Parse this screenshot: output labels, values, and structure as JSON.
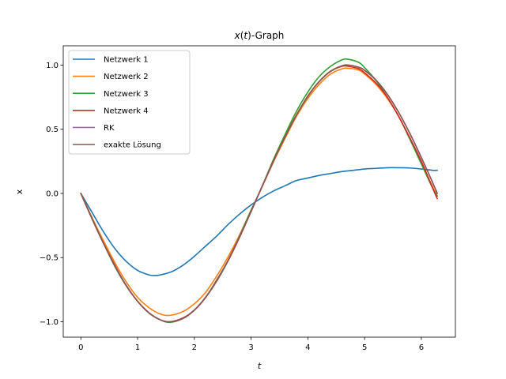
{
  "chart_data": {
    "type": "line",
    "title_parts": {
      "var": "x",
      "open": "(",
      "t": "t",
      "close": ")",
      "suffix": "-Graph"
    },
    "xlabel": "t",
    "ylabel": "x",
    "xlim": [
      -0.31,
      6.6
    ],
    "ylim": [
      -1.12,
      1.15
    ],
    "xticks": [
      0,
      1,
      2,
      3,
      4,
      5,
      6
    ],
    "yticks": [
      -1.0,
      -0.5,
      0.0,
      0.5,
      1.0
    ],
    "xtick_labels": [
      "0",
      "1",
      "2",
      "3",
      "4",
      "5",
      "6"
    ],
    "ytick_labels": [
      "−1.0",
      "−0.5",
      "0.0",
      "0.5",
      "1.0"
    ],
    "legend_position": "upper-left",
    "series": [
      {
        "name": "Netzwerk 1",
        "color": "#1f77b4",
        "x": [
          0,
          0.2,
          0.4,
          0.6,
          0.8,
          1.0,
          1.2,
          1.3,
          1.4,
          1.6,
          1.8,
          2.0,
          2.2,
          2.4,
          2.6,
          2.8,
          3.0,
          3.2,
          3.4,
          3.6,
          3.8,
          4.0,
          4.2,
          4.4,
          4.6,
          4.8,
          5.0,
          5.2,
          5.4,
          5.6,
          5.8,
          6.0,
          6.2,
          6.28
        ],
        "y": [
          0,
          -0.15,
          -0.3,
          -0.43,
          -0.53,
          -0.6,
          -0.635,
          -0.64,
          -0.635,
          -0.61,
          -0.56,
          -0.49,
          -0.41,
          -0.33,
          -0.24,
          -0.16,
          -0.09,
          -0.03,
          0.02,
          0.06,
          0.1,
          0.12,
          0.14,
          0.155,
          0.17,
          0.18,
          0.19,
          0.195,
          0.2,
          0.2,
          0.198,
          0.19,
          0.18,
          0.18
        ]
      },
      {
        "name": "Netzwerk 2",
        "color": "#ff7f0e",
        "x": [
          0,
          0.2,
          0.4,
          0.6,
          0.8,
          1.0,
          1.2,
          1.4,
          1.57,
          1.8,
          2.0,
          2.2,
          2.4,
          2.6,
          2.8,
          3.0,
          3.14,
          3.4,
          3.6,
          3.8,
          4.0,
          4.2,
          4.4,
          4.6,
          4.71,
          4.9,
          5.0,
          5.2,
          5.4,
          5.6,
          5.8,
          6.0,
          6.2,
          6.28
        ],
        "y": [
          0,
          -0.19,
          -0.37,
          -0.54,
          -0.69,
          -0.81,
          -0.89,
          -0.94,
          -0.95,
          -0.92,
          -0.86,
          -0.77,
          -0.64,
          -0.49,
          -0.32,
          -0.13,
          0.0,
          0.25,
          0.43,
          0.6,
          0.74,
          0.85,
          0.93,
          0.97,
          0.975,
          0.96,
          0.93,
          0.85,
          0.74,
          0.6,
          0.43,
          0.24,
          0.05,
          -0.02
        ]
      },
      {
        "name": "Netzwerk 3",
        "color": "#2ca02c",
        "x": [
          0,
          0.2,
          0.4,
          0.6,
          0.8,
          1.0,
          1.2,
          1.4,
          1.57,
          1.8,
          2.0,
          2.2,
          2.4,
          2.6,
          2.8,
          3.0,
          3.14,
          3.4,
          3.6,
          3.8,
          4.0,
          4.2,
          4.4,
          4.6,
          4.71,
          4.9,
          5.0,
          5.2,
          5.4,
          5.6,
          5.8,
          6.0,
          6.2,
          6.28
        ],
        "y": [
          0,
          -0.2,
          -0.39,
          -0.57,
          -0.72,
          -0.84,
          -0.93,
          -0.985,
          -1.005,
          -0.975,
          -0.91,
          -0.81,
          -0.68,
          -0.52,
          -0.33,
          -0.13,
          0.0,
          0.27,
          0.46,
          0.64,
          0.79,
          0.91,
          0.99,
          1.04,
          1.045,
          1.02,
          0.98,
          0.88,
          0.75,
          0.6,
          0.42,
          0.23,
          0.04,
          -0.02
        ]
      },
      {
        "name": "Netzwerk 4",
        "color": "#d62728",
        "x": [
          0,
          0.2,
          0.4,
          0.6,
          0.8,
          1.0,
          1.2,
          1.4,
          1.57,
          1.8,
          2.0,
          2.2,
          2.4,
          2.6,
          2.8,
          3.0,
          3.14,
          3.4,
          3.6,
          3.8,
          4.0,
          4.2,
          4.4,
          4.6,
          4.71,
          4.9,
          5.0,
          5.2,
          5.4,
          5.6,
          5.8,
          6.0,
          6.2,
          6.28
        ],
        "y": [
          0,
          -0.2,
          -0.39,
          -0.56,
          -0.72,
          -0.84,
          -0.93,
          -0.985,
          -1.0,
          -0.97,
          -0.91,
          -0.81,
          -0.67,
          -0.52,
          -0.34,
          -0.14,
          0.0,
          0.26,
          0.44,
          0.61,
          0.76,
          0.87,
          0.95,
          0.99,
          0.99,
          0.97,
          0.94,
          0.86,
          0.75,
          0.6,
          0.43,
          0.25,
          0.04,
          -0.04
        ]
      },
      {
        "name": "RK",
        "color": "#9467bd",
        "x": [
          0,
          0.2,
          0.4,
          0.6,
          0.8,
          1.0,
          1.2,
          1.4,
          1.57,
          1.8,
          2.0,
          2.2,
          2.4,
          2.6,
          2.8,
          3.0,
          3.14,
          3.4,
          3.6,
          3.8,
          4.0,
          4.2,
          4.4,
          4.6,
          4.71,
          4.9,
          5.0,
          5.2,
          5.4,
          5.6,
          5.8,
          6.0,
          6.2,
          6.28
        ],
        "y": [
          0,
          -0.199,
          -0.389,
          -0.565,
          -0.717,
          -0.841,
          -0.932,
          -0.985,
          -1.0,
          -0.974,
          -0.909,
          -0.808,
          -0.675,
          -0.516,
          -0.335,
          -0.141,
          0.0,
          0.256,
          0.443,
          0.612,
          0.757,
          0.872,
          0.952,
          0.994,
          1.0,
          0.982,
          0.959,
          0.883,
          0.773,
          0.631,
          0.465,
          0.279,
          0.083,
          0.0
        ]
      },
      {
        "name": "exakte Lösung",
        "color": "#8c564b",
        "x": [
          0,
          0.2,
          0.4,
          0.6,
          0.8,
          1.0,
          1.2,
          1.4,
          1.57,
          1.8,
          2.0,
          2.2,
          2.4,
          2.6,
          2.8,
          3.0,
          3.14,
          3.4,
          3.6,
          3.8,
          4.0,
          4.2,
          4.4,
          4.6,
          4.71,
          4.9,
          5.0,
          5.2,
          5.4,
          5.6,
          5.8,
          6.0,
          6.2,
          6.28
        ],
        "y": [
          0,
          -0.199,
          -0.389,
          -0.565,
          -0.717,
          -0.841,
          -0.932,
          -0.985,
          -1.0,
          -0.974,
          -0.909,
          -0.808,
          -0.675,
          -0.516,
          -0.335,
          -0.141,
          0.0,
          0.256,
          0.443,
          0.612,
          0.757,
          0.872,
          0.952,
          0.994,
          1.0,
          0.982,
          0.959,
          0.883,
          0.773,
          0.631,
          0.465,
          0.279,
          0.083,
          0.0
        ]
      }
    ]
  }
}
